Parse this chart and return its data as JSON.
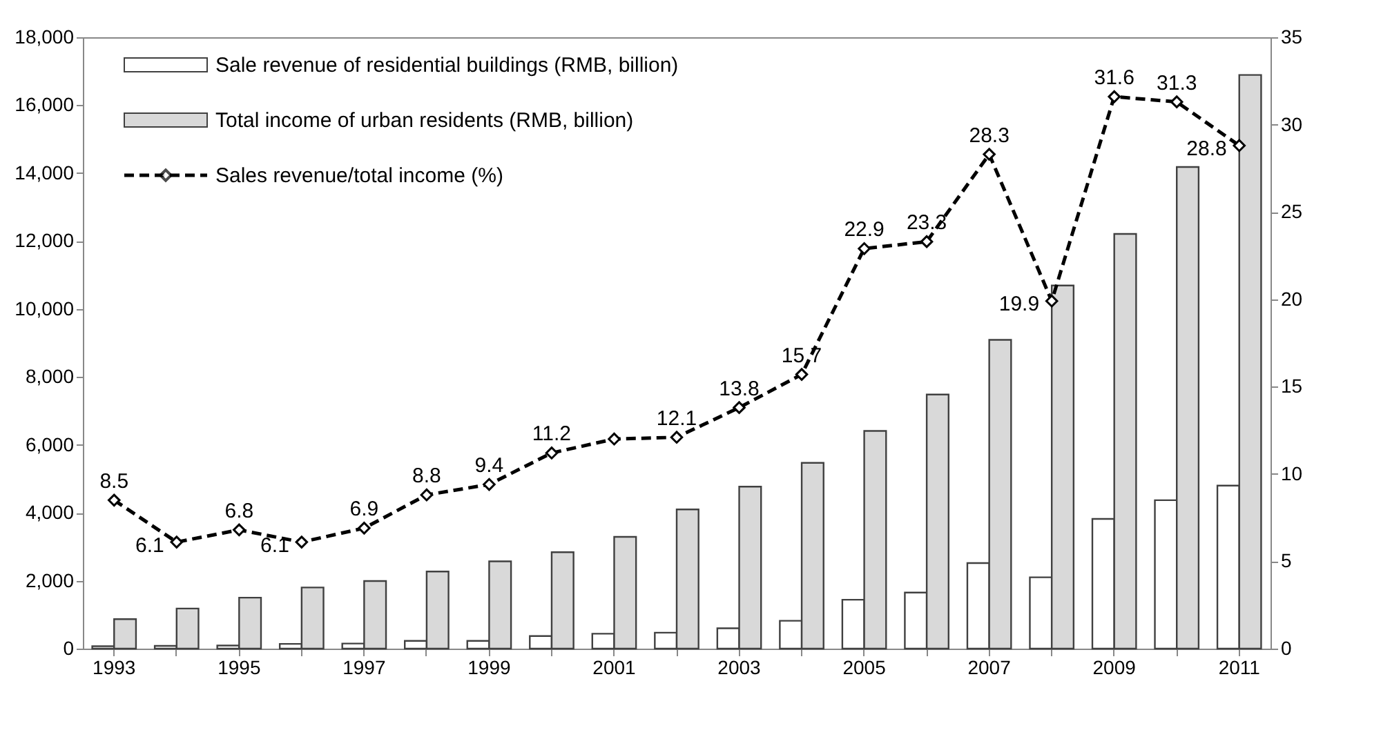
{
  "chart_data": {
    "type": "bar",
    "categories": [
      "1993",
      null,
      "1995",
      null,
      "1997",
      null,
      "1999",
      null,
      "2001",
      null,
      "2003",
      null,
      "2005",
      null,
      "2007",
      null,
      "2009",
      null,
      "2011"
    ],
    "series": [
      {
        "name": "Sale revenue of residential buildings (RMB, billion)",
        "type": "bar",
        "color": "#ffffff",
        "values": [
          70,
          80,
          90,
          140,
          150,
          230,
          230,
          370,
          440,
          470,
          600,
          820,
          1440,
          1650,
          2520,
          2100,
          3820,
          4370,
          4800
        ]
      },
      {
        "name": "Total income of urban residents (RMB, billion)",
        "type": "bar",
        "color": "#d9d9d9",
        "values": [
          870,
          1180,
          1500,
          1800,
          1990,
          2270,
          2570,
          2840,
          3290,
          4100,
          4770,
          5470,
          6410,
          7480,
          9090,
          10690,
          12210,
          14180,
          16890
        ]
      },
      {
        "name": "Sales revenue/total income (%)",
        "type": "line",
        "axis": "y2",
        "color": "#000000",
        "marker": "diamond",
        "line_style": "dashed",
        "values": [
          8.5,
          6.1,
          6.8,
          6.1,
          6.9,
          8.8,
          9.4,
          11.2,
          12.0,
          12.1,
          13.8,
          15.7,
          22.9,
          23.3,
          28.3,
          19.9,
          31.6,
          31.3,
          28.8
        ],
        "value_labels": [
          "8.5",
          "6.1",
          "6.8",
          "6.1",
          "6.9",
          "8.8",
          "9.4",
          "11.2",
          null,
          "12.1",
          "13.8",
          "15.7",
          "22.9",
          "23.3",
          "28.3",
          "19.9",
          "31.6",
          "31.3",
          "28.8"
        ]
      }
    ],
    "ylim": [
      0,
      18000
    ],
    "yticks": [
      0,
      {
        "value": 2000,
        "label": "2,000"
      },
      {
        "value": 4000,
        "label": "4,000"
      },
      {
        "value": 6000,
        "label": "6,000"
      },
      {
        "value": 8000,
        "label": "8,000"
      },
      {
        "value": 10000,
        "label": "10,000"
      },
      {
        "value": 12000,
        "label": "12,000"
      },
      {
        "value": 14000,
        "label": "14,000"
      },
      {
        "value": 16000,
        "label": "16,000"
      },
      {
        "value": 18000,
        "label": "18,000"
      }
    ],
    "y2lim": [
      0,
      35
    ],
    "y2ticks": [
      0,
      5,
      10,
      15,
      20,
      25,
      30,
      35
    ],
    "legend": "top left",
    "grid": false
  }
}
